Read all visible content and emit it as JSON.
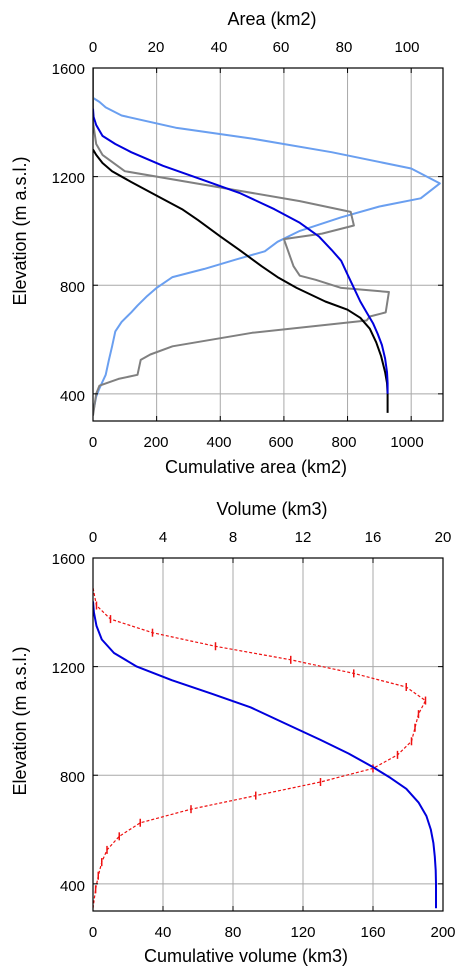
{
  "chart_data": [
    {
      "type": "line",
      "ylabel": "Elevation (m a.s.l.)",
      "ylim": [
        300,
        1600
      ],
      "yticks": [
        400,
        800,
        1200,
        1600
      ],
      "grid": true,
      "x_bottom": {
        "label": "Cumulative area (km2)",
        "lim": [
          0,
          1100
        ],
        "ticks": [
          0,
          200,
          400,
          600,
          800,
          1000
        ]
      },
      "x_top": {
        "label": "Area (km2)",
        "lim": [
          0,
          110
        ],
        "ticks": [
          0,
          20,
          40,
          60,
          80,
          100
        ]
      },
      "series": [
        {
          "axis": "top",
          "color": "#6a9ff0",
          "points": [
            [
              0,
              330
            ],
            [
              1,
              390
            ],
            [
              2,
              420
            ],
            [
              4,
              470
            ],
            [
              5,
              525
            ],
            [
              6,
              575
            ],
            [
              7,
              630
            ],
            [
              9,
              665
            ],
            [
              12,
              700
            ],
            [
              14,
              725
            ],
            [
              17,
              760
            ],
            [
              20,
              790
            ],
            [
              25,
              830
            ],
            [
              35,
              860
            ],
            [
              45,
              895
            ],
            [
              54,
              925
            ],
            [
              58,
              960
            ],
            [
              65,
              1000
            ],
            [
              78,
              1050
            ],
            [
              90,
              1090
            ],
            [
              103,
              1120
            ],
            [
              109,
              1175
            ],
            [
              100,
              1230
            ],
            [
              75,
              1290
            ],
            [
              50,
              1340
            ],
            [
              26,
              1380
            ],
            [
              9,
              1425
            ],
            [
              4,
              1455
            ],
            [
              2,
              1475
            ],
            [
              0,
              1490
            ]
          ]
        },
        {
          "axis": "top",
          "color": "#808080",
          "points": [
            [
              0,
              320
            ],
            [
              1,
              400
            ],
            [
              2,
              430
            ],
            [
              8,
              455
            ],
            [
              14,
              470
            ],
            [
              15,
              525
            ],
            [
              18,
              545
            ],
            [
              25,
              575
            ],
            [
              50,
              625
            ],
            [
              86,
              670
            ],
            [
              87,
              685
            ],
            [
              92,
              700
            ],
            [
              93,
              775
            ],
            [
              78,
              790
            ],
            [
              70,
              820
            ],
            [
              65,
              835
            ],
            [
              63,
              870
            ],
            [
              60,
              970
            ],
            [
              72,
              990
            ],
            [
              82,
              1020
            ],
            [
              81,
              1070
            ],
            [
              65,
              1110
            ],
            [
              40,
              1160
            ],
            [
              10,
              1220
            ],
            [
              3,
              1280
            ],
            [
              1,
              1320
            ],
            [
              0,
              1400
            ],
            [
              0,
              1600
            ]
          ]
        },
        {
          "axis": "bottom",
          "color": "#000000",
          "points": [
            [
              926,
              330
            ],
            [
              926,
              400
            ],
            [
              924,
              440
            ],
            [
              918,
              480
            ],
            [
              905,
              540
            ],
            [
              890,
              590
            ],
            [
              870,
              640
            ],
            [
              840,
              680
            ],
            [
              800,
              710
            ],
            [
              730,
              740
            ],
            [
              640,
              790
            ],
            [
              580,
              830
            ],
            [
              530,
              870
            ],
            [
              460,
              930
            ],
            [
              400,
              980
            ],
            [
              330,
              1040
            ],
            [
              280,
              1080
            ],
            [
              200,
              1130
            ],
            [
              120,
              1180
            ],
            [
              60,
              1220
            ],
            [
              30,
              1250
            ],
            [
              10,
              1280
            ],
            [
              0,
              1300
            ]
          ]
        },
        {
          "axis": "bottom",
          "color": "#0000dd",
          "points": [
            [
              926,
              400
            ],
            [
              926,
              440
            ],
            [
              924,
              480
            ],
            [
              918,
              530
            ],
            [
              908,
              580
            ],
            [
              895,
              620
            ],
            [
              880,
              660
            ],
            [
              860,
              700
            ],
            [
              840,
              740
            ],
            [
              820,
              790
            ],
            [
              800,
              840
            ],
            [
              780,
              890
            ],
            [
              750,
              930
            ],
            [
              710,
              980
            ],
            [
              650,
              1030
            ],
            [
              570,
              1080
            ],
            [
              460,
              1140
            ],
            [
              340,
              1190
            ],
            [
              220,
              1240
            ],
            [
              120,
              1290
            ],
            [
              70,
              1320
            ],
            [
              30,
              1350
            ],
            [
              10,
              1390
            ],
            [
              2,
              1420
            ],
            [
              0,
              1450
            ]
          ]
        }
      ]
    },
    {
      "type": "line",
      "ylabel": "Elevation (m a.s.l.)",
      "ylim": [
        300,
        1600
      ],
      "yticks": [
        400,
        800,
        1200,
        1600
      ],
      "grid": true,
      "x_bottom": {
        "label": "Cumulative volume (km3)",
        "lim": [
          0,
          200
        ],
        "ticks": [
          0,
          40,
          80,
          120,
          160,
          200
        ]
      },
      "x_top": {
        "label": "Volume (km3)",
        "lim": [
          0,
          20
        ],
        "ticks": [
          0,
          4,
          8,
          12,
          16,
          20
        ]
      },
      "series": [
        {
          "axis": "top",
          "color": "#ee1111",
          "style": "dashed-errorbars",
          "points": [
            [
              0,
              310
            ],
            [
              0.15,
              380
            ],
            [
              0.3,
              430
            ],
            [
              0.5,
              480
            ],
            [
              0.8,
              525
            ],
            [
              1.5,
              575
            ],
            [
              2.7,
              625
            ],
            [
              5.6,
              675
            ],
            [
              9.3,
              725
            ],
            [
              13,
              775
            ],
            [
              16,
              825
            ],
            [
              17.4,
              875
            ],
            [
              18.2,
              925
            ],
            [
              18.4,
              975
            ],
            [
              18.6,
              1025
            ],
            [
              19,
              1075
            ],
            [
              17.9,
              1125
            ],
            [
              14.9,
              1175
            ],
            [
              11.3,
              1225
            ],
            [
              7,
              1275
            ],
            [
              3.4,
              1325
            ],
            [
              1,
              1375
            ],
            [
              0.2,
              1425
            ],
            [
              0,
              1490
            ]
          ]
        },
        {
          "axis": "bottom",
          "color": "#0000dd",
          "points": [
            [
              196,
              310
            ],
            [
              196,
              400
            ],
            [
              195.8,
              450
            ],
            [
              195.3,
              500
            ],
            [
              194.5,
              550
            ],
            [
              193,
              600
            ],
            [
              190.5,
              650
            ],
            [
              186,
              700
            ],
            [
              179,
              750
            ],
            [
              170,
              790
            ],
            [
              160,
              830
            ],
            [
              146,
              880
            ],
            [
              130,
              930
            ],
            [
              110,
              990
            ],
            [
              90,
              1050
            ],
            [
              68,
              1100
            ],
            [
              45,
              1150
            ],
            [
              25,
              1200
            ],
            [
              12,
              1250
            ],
            [
              5,
              1300
            ],
            [
              2,
              1350
            ],
            [
              0.5,
              1400
            ],
            [
              0,
              1440
            ]
          ]
        }
      ]
    }
  ]
}
